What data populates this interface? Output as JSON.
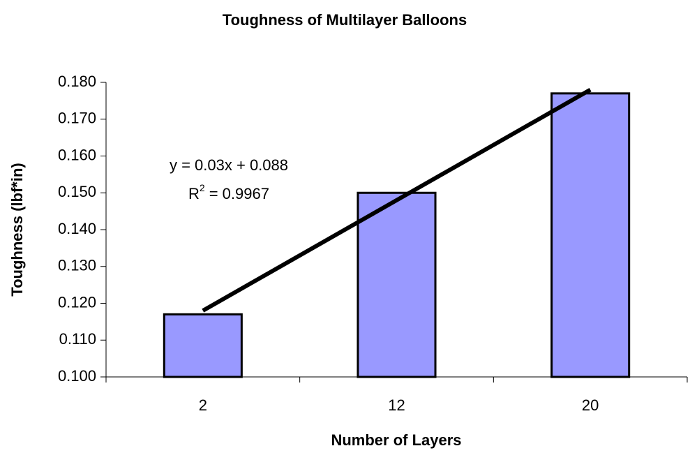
{
  "chart_data": {
    "type": "bar",
    "title": "Toughness of Multilayer Balloons",
    "x_label": "Number of Layers",
    "y_label": "Toughness (lbf*in)",
    "categories": [
      "2",
      "12",
      "20"
    ],
    "values": [
      0.117,
      0.15,
      0.177
    ],
    "color": "#9999ff",
    "ylim": [
      0.1,
      0.18
    ],
    "yticks": [
      {
        "value": 0.1,
        "label": "0.100"
      },
      {
        "value": 0.11,
        "label": "0.110"
      },
      {
        "value": 0.12,
        "label": "0.120"
      },
      {
        "value": 0.13,
        "label": "0.130"
      },
      {
        "value": 0.14,
        "label": "0.140"
      },
      {
        "value": 0.15,
        "label": "0.150"
      },
      {
        "value": 0.16,
        "label": "0.160"
      },
      {
        "value": 0.17,
        "label": "0.170"
      },
      {
        "value": 0.18,
        "label": "0.180"
      }
    ],
    "grid": false,
    "trendline": {
      "values": [
        0.118,
        0.148,
        0.178
      ],
      "color": "#000000",
      "equation": "y = 0.03x + 0.088",
      "r2_symbol": "R",
      "r2_power": "2",
      "r2_value": "= 0.9967"
    }
  }
}
